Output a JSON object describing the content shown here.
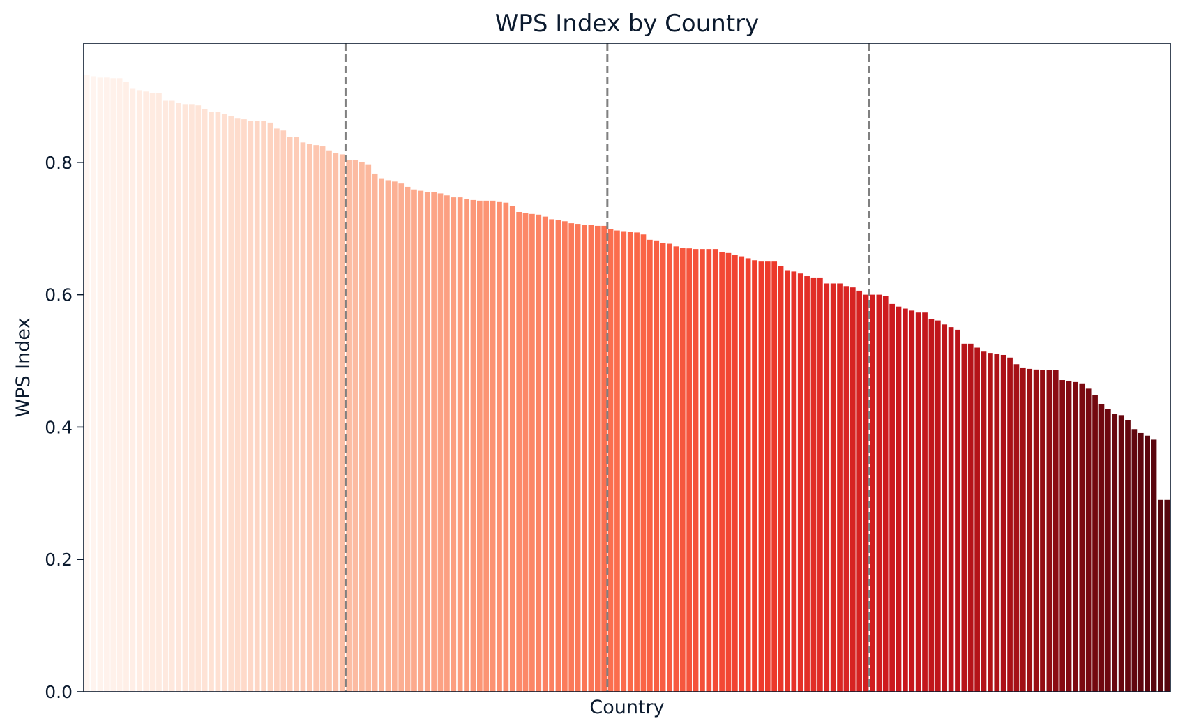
{
  "chart_data": {
    "type": "bar",
    "title": "WPS Index by Country",
    "xlabel": "Country",
    "ylabel": "WPS Index",
    "ylim": [
      0,
      0.98
    ],
    "yticks": [
      "0.0",
      "0.2",
      "0.4",
      "0.6",
      "0.8"
    ],
    "grid": false,
    "x_tick_labels_shown": false,
    "colormap": "reds",
    "color_start": "#fff5f0",
    "color_end": "#4a0a0e",
    "divider_color": "#808080",
    "quartile_dividers_after_bar": [
      40,
      80,
      120
    ],
    "values": [
      0.932,
      0.93,
      0.928,
      0.928,
      0.927,
      0.927,
      0.922,
      0.912,
      0.909,
      0.907,
      0.905,
      0.905,
      0.893,
      0.893,
      0.89,
      0.888,
      0.888,
      0.886,
      0.88,
      0.876,
      0.876,
      0.873,
      0.87,
      0.867,
      0.865,
      0.863,
      0.863,
      0.862,
      0.86,
      0.851,
      0.848,
      0.838,
      0.838,
      0.83,
      0.828,
      0.826,
      0.824,
      0.818,
      0.814,
      0.812,
      0.803,
      0.803,
      0.8,
      0.797,
      0.783,
      0.776,
      0.773,
      0.771,
      0.768,
      0.763,
      0.759,
      0.757,
      0.755,
      0.755,
      0.753,
      0.75,
      0.747,
      0.747,
      0.745,
      0.743,
      0.742,
      0.742,
      0.742,
      0.741,
      0.739,
      0.734,
      0.725,
      0.723,
      0.722,
      0.721,
      0.718,
      0.714,
      0.713,
      0.711,
      0.708,
      0.707,
      0.706,
      0.706,
      0.704,
      0.704,
      0.699,
      0.697,
      0.696,
      0.695,
      0.694,
      0.691,
      0.683,
      0.682,
      0.678,
      0.677,
      0.673,
      0.671,
      0.67,
      0.669,
      0.669,
      0.669,
      0.669,
      0.664,
      0.663,
      0.66,
      0.658,
      0.655,
      0.652,
      0.65,
      0.65,
      0.65,
      0.643,
      0.637,
      0.635,
      0.632,
      0.628,
      0.626,
      0.626,
      0.617,
      0.617,
      0.617,
      0.613,
      0.611,
      0.606,
      0.6,
      0.6,
      0.6,
      0.598,
      0.586,
      0.582,
      0.579,
      0.576,
      0.573,
      0.573,
      0.563,
      0.561,
      0.555,
      0.551,
      0.547,
      0.526,
      0.526,
      0.52,
      0.514,
      0.512,
      0.51,
      0.509,
      0.505,
      0.495,
      0.489,
      0.488,
      0.487,
      0.486,
      0.486,
      0.486,
      0.471,
      0.47,
      0.468,
      0.466,
      0.458,
      0.448,
      0.435,
      0.427,
      0.42,
      0.418,
      0.41,
      0.397,
      0.391,
      0.387,
      0.381,
      0.29,
      0.29
    ]
  }
}
